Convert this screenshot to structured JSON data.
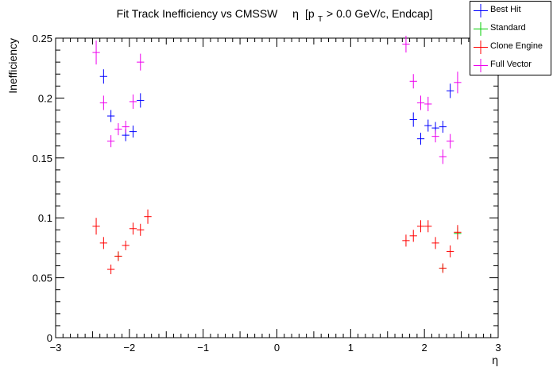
{
  "chart_data": {
    "type": "scatter",
    "title_main": "Fit Track Inefficiency vs CMSSW",
    "title_eta": "η",
    "title_cut_open": "[p",
    "title_cut_sub": "T",
    "title_cut_rest": "> 0.0 GeV/c, Endcap]",
    "xlabel": "η",
    "ylabel": "Inefficiency",
    "xlim": [
      -3,
      3
    ],
    "ylim": [
      0,
      0.25
    ],
    "x_ticks": [
      -3,
      -2,
      -1,
      0,
      1,
      2,
      3
    ],
    "x_tick_labels": [
      "−3",
      "−2",
      "−1",
      "0",
      "1",
      "2",
      "3"
    ],
    "y_ticks": [
      0,
      0.05,
      0.1,
      0.15,
      0.2,
      0.25
    ],
    "y_tick_labels": [
      "0",
      "0.05",
      "0.1",
      "0.15",
      "0.2",
      "0.25"
    ],
    "grid": false,
    "legend_position": "top-right",
    "x_halfwidth": 0.05,
    "series": [
      {
        "name": "Best Hit",
        "color": "#0000ff",
        "x": [
          -2.35,
          -2.25,
          -2.05,
          -1.95,
          -1.85,
          1.85,
          1.95,
          2.05,
          2.15,
          2.25,
          2.35
        ],
        "y": [
          0.218,
          0.185,
          0.169,
          0.172,
          0.198,
          0.182,
          0.166,
          0.177,
          0.175,
          0.176,
          0.206
        ],
        "err": [
          0.006,
          0.005,
          0.005,
          0.005,
          0.006,
          0.006,
          0.005,
          0.005,
          0.005,
          0.005,
          0.006
        ]
      },
      {
        "name": "Standard",
        "color": "#00cc00",
        "x": [
          -2.15,
          2.25,
          2.45
        ],
        "y": [
          0.068,
          0.058,
          0.087
        ],
        "err": [
          0.004,
          0.003,
          0.005
        ]
      },
      {
        "name": "Clone Engine",
        "color": "#ff0000",
        "x": [
          -2.45,
          -2.35,
          -2.25,
          -2.15,
          -2.05,
          -1.95,
          -1.85,
          -1.75,
          1.75,
          1.85,
          1.95,
          2.05,
          2.15,
          2.25,
          2.35,
          2.45
        ],
        "y": [
          0.093,
          0.079,
          0.057,
          0.068,
          0.077,
          0.091,
          0.09,
          0.101,
          0.081,
          0.085,
          0.093,
          0.093,
          0.079,
          0.058,
          0.072,
          0.088
        ],
        "err": [
          0.007,
          0.005,
          0.004,
          0.004,
          0.004,
          0.005,
          0.005,
          0.006,
          0.005,
          0.005,
          0.005,
          0.005,
          0.005,
          0.004,
          0.005,
          0.006
        ]
      },
      {
        "name": "Full Vector",
        "color": "#ee00ee",
        "x": [
          -2.45,
          -2.35,
          -2.25,
          -2.15,
          -2.05,
          -1.95,
          -1.85,
          1.75,
          1.85,
          1.95,
          2.05,
          2.15,
          2.25,
          2.35,
          2.45
        ],
        "y": [
          0.238,
          0.196,
          0.164,
          0.174,
          0.176,
          0.197,
          0.23,
          0.245,
          0.214,
          0.196,
          0.195,
          0.168,
          0.151,
          0.164,
          0.213
        ],
        "err": [
          0.01,
          0.006,
          0.005,
          0.005,
          0.005,
          0.006,
          0.007,
          0.007,
          0.006,
          0.006,
          0.006,
          0.005,
          0.006,
          0.006,
          0.009
        ]
      }
    ]
  },
  "legend": {
    "items": [
      {
        "label": "Best Hit",
        "color": "#0000ff"
      },
      {
        "label": "Standard",
        "color": "#00cc00"
      },
      {
        "label": "Clone Engine",
        "color": "#ff0000"
      },
      {
        "label": "Full Vector",
        "color": "#ee00ee"
      }
    ]
  }
}
